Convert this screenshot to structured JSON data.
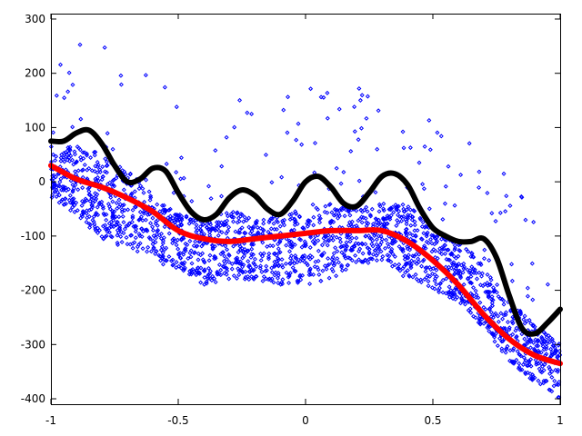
{
  "chart_data": {
    "type": "scatter",
    "title": "",
    "xlabel": "",
    "ylabel": "",
    "xlim": [
      -1,
      1
    ],
    "ylim": [
      -410,
      310
    ],
    "grid": false,
    "legend": "none",
    "x_ticks": [
      "-1",
      "-0.5",
      "0",
      "0.5",
      "1"
    ],
    "x_tick_values": [
      -1,
      -0.5,
      0,
      0.5,
      1
    ],
    "y_ticks": [
      "300",
      "200",
      "100",
      "0",
      "-100",
      "-200",
      "-300",
      "-400"
    ],
    "y_tick_values": [
      300,
      200,
      100,
      0,
      -100,
      -200,
      -300,
      -400
    ],
    "scatter_color": "#0000ff",
    "scatter_band_profile": {
      "x": [
        -1.0,
        -0.9,
        -0.8,
        -0.7,
        -0.6,
        -0.5,
        -0.4,
        -0.3,
        -0.2,
        -0.1,
        0.0,
        0.1,
        0.2,
        0.3,
        0.4,
        0.5,
        0.6,
        0.7,
        0.8,
        0.9,
        1.0
      ],
      "upper": [
        50,
        70,
        50,
        20,
        -20,
        -60,
        -70,
        -50,
        -70,
        -60,
        -50,
        -40,
        -45,
        -40,
        -40,
        -90,
        -110,
        -150,
        -220,
        -260,
        -300
      ],
      "lower": [
        -30,
        -60,
        -110,
        -120,
        -150,
        -160,
        -190,
        -180,
        -180,
        -190,
        -190,
        -180,
        -150,
        -150,
        -180,
        -200,
        -220,
        -270,
        -330,
        -370,
        -400
      ]
    },
    "series": [
      {
        "color": "#000000",
        "points": [
          [
            -1.0,
            75
          ],
          [
            -0.95,
            75
          ],
          [
            -0.9,
            90
          ],
          [
            -0.85,
            95
          ],
          [
            -0.8,
            70
          ],
          [
            -0.75,
            30
          ],
          [
            -0.7,
            0
          ],
          [
            -0.65,
            5
          ],
          [
            -0.6,
            25
          ],
          [
            -0.55,
            20
          ],
          [
            -0.5,
            -20
          ],
          [
            -0.45,
            -55
          ],
          [
            -0.4,
            -70
          ],
          [
            -0.35,
            -60
          ],
          [
            -0.3,
            -30
          ],
          [
            -0.25,
            -15
          ],
          [
            -0.2,
            -25
          ],
          [
            -0.15,
            -50
          ],
          [
            -0.1,
            -60
          ],
          [
            -0.05,
            -35
          ],
          [
            0.0,
            0
          ],
          [
            0.05,
            10
          ],
          [
            0.1,
            -10
          ],
          [
            0.15,
            -40
          ],
          [
            0.2,
            -45
          ],
          [
            0.25,
            -20
          ],
          [
            0.3,
            10
          ],
          [
            0.35,
            15
          ],
          [
            0.4,
            -5
          ],
          [
            0.45,
            -50
          ],
          [
            0.5,
            -85
          ],
          [
            0.55,
            -100
          ],
          [
            0.6,
            -110
          ],
          [
            0.65,
            -110
          ],
          [
            0.7,
            -105
          ],
          [
            0.75,
            -140
          ],
          [
            0.8,
            -210
          ],
          [
            0.85,
            -270
          ],
          [
            0.9,
            -280
          ],
          [
            0.95,
            -260
          ],
          [
            1.0,
            -235
          ]
        ]
      },
      {
        "color": "#ff0000",
        "points": [
          [
            -1.0,
            30
          ],
          [
            -0.9,
            5
          ],
          [
            -0.8,
            -10
          ],
          [
            -0.7,
            -30
          ],
          [
            -0.6,
            -55
          ],
          [
            -0.5,
            -90
          ],
          [
            -0.4,
            -105
          ],
          [
            -0.3,
            -110
          ],
          [
            -0.2,
            -105
          ],
          [
            -0.1,
            -100
          ],
          [
            0.0,
            -95
          ],
          [
            0.1,
            -90
          ],
          [
            0.2,
            -90
          ],
          [
            0.3,
            -90
          ],
          [
            0.4,
            -110
          ],
          [
            0.5,
            -145
          ],
          [
            0.6,
            -190
          ],
          [
            0.7,
            -245
          ],
          [
            0.8,
            -290
          ],
          [
            0.9,
            -320
          ],
          [
            1.0,
            -335
          ]
        ]
      }
    ]
  }
}
